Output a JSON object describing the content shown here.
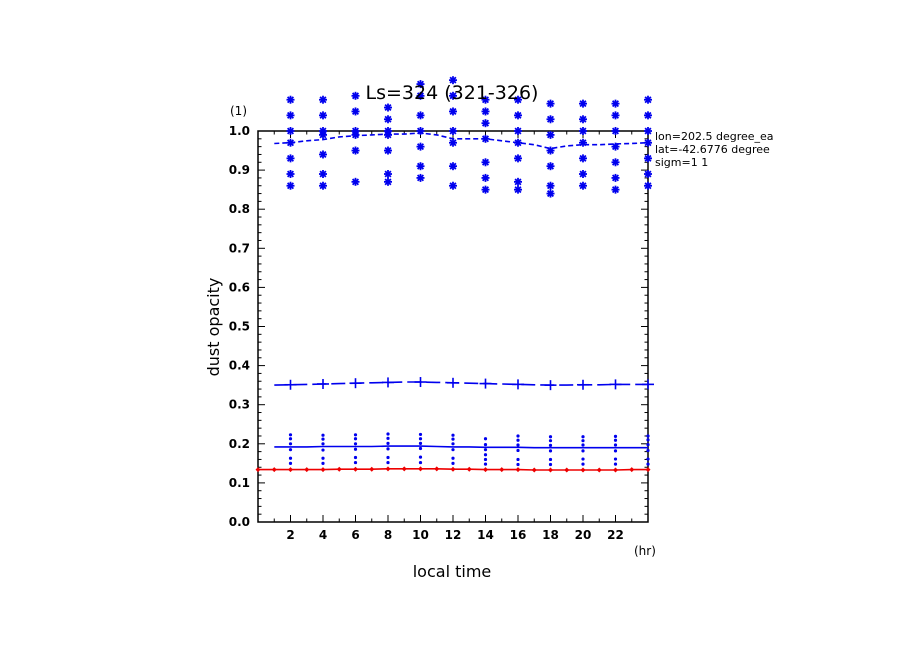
{
  "chart_data": {
    "type": "line",
    "title": "Ls=324 (321-326)",
    "xlabel": "local time",
    "ylabel": "dust opacity",
    "x_unit": "(hr)",
    "y_unit": "(1)",
    "xlim": [
      0,
      24
    ],
    "ylim": [
      0.0,
      1.0
    ],
    "xticks": [
      2,
      4,
      6,
      8,
      10,
      12,
      14,
      16,
      18,
      20,
      22
    ],
    "yticks": [
      0.0,
      0.1,
      0.2,
      0.3,
      0.4,
      0.5,
      0.6,
      0.7,
      0.8,
      0.9,
      1.0
    ],
    "annotations": [
      "lon=202.5 degree_ea",
      "lat=-42.6776 degree",
      "sigm=1 1"
    ],
    "colors": {
      "blue": "#0000ee",
      "red": "#ee0000",
      "axis": "#000000"
    },
    "series": [
      {
        "style": "dashed-line",
        "color": "#0000ee",
        "x": [
          1,
          2,
          3,
          4,
          5,
          6,
          7,
          8,
          9,
          10,
          11,
          12,
          13,
          14,
          15,
          16,
          17,
          18,
          19,
          20,
          21,
          22,
          23,
          24
        ],
        "values": [
          0.968,
          0.97,
          0.975,
          0.978,
          0.985,
          0.988,
          0.99,
          0.992,
          0.992,
          0.995,
          0.99,
          0.98,
          0.98,
          0.98,
          0.975,
          0.97,
          0.965,
          0.955,
          0.962,
          0.965,
          0.965,
          0.967,
          0.968,
          0.97
        ]
      },
      {
        "style": "star-markers",
        "color": "#0000ee",
        "x": [
          2,
          4,
          6,
          8,
          10,
          12,
          14,
          16,
          18,
          20,
          22,
          24
        ],
        "scatter": [
          [
            0.86,
            0.89,
            0.93,
            0.97,
            1.0,
            1.04,
            1.08
          ],
          [
            0.86,
            0.89,
            0.94,
            0.99,
            1.0,
            1.04,
            1.08
          ],
          [
            0.87,
            0.95,
            0.99,
            1.0,
            1.05,
            1.09
          ],
          [
            0.87,
            0.89,
            0.95,
            0.99,
            1.0,
            1.03,
            1.06
          ],
          [
            0.88,
            0.91,
            0.96,
            1.0,
            1.04,
            1.09,
            1.12
          ],
          [
            0.86,
            0.91,
            0.97,
            1.0,
            1.05,
            1.09,
            1.13
          ],
          [
            0.85,
            0.88,
            0.92,
            0.98,
            1.02,
            1.05,
            1.08
          ],
          [
            0.85,
            0.87,
            0.93,
            0.97,
            1.0,
            1.04,
            1.08
          ],
          [
            0.84,
            0.86,
            0.91,
            0.95,
            0.99,
            1.03,
            1.07
          ],
          [
            0.86,
            0.89,
            0.93,
            0.97,
            1.0,
            1.03,
            1.07
          ],
          [
            0.85,
            0.88,
            0.92,
            0.96,
            1.0,
            1.04,
            1.07
          ],
          [
            0.86,
            0.89,
            0.93,
            0.97,
            1.0,
            1.04,
            1.08
          ]
        ]
      },
      {
        "style": "long-dash-cross",
        "color": "#0000ee",
        "x": [
          1,
          2,
          3,
          4,
          5,
          6,
          7,
          8,
          9,
          10,
          11,
          12,
          13,
          14,
          15,
          16,
          17,
          18,
          19,
          20,
          21,
          22,
          23,
          24
        ],
        "values": [
          0.35,
          0.351,
          0.352,
          0.353,
          0.354,
          0.355,
          0.356,
          0.357,
          0.358,
          0.358,
          0.357,
          0.356,
          0.355,
          0.354,
          0.353,
          0.352,
          0.351,
          0.35,
          0.35,
          0.351,
          0.351,
          0.352,
          0.352,
          0.352
        ]
      },
      {
        "style": "solid-line",
        "color": "#0000ee",
        "x": [
          1,
          2,
          3,
          4,
          5,
          6,
          7,
          8,
          9,
          10,
          11,
          12,
          13,
          14,
          15,
          16,
          17,
          18,
          19,
          20,
          21,
          22,
          23,
          24
        ],
        "values": [
          0.192,
          0.192,
          0.192,
          0.193,
          0.193,
          0.193,
          0.193,
          0.194,
          0.194,
          0.194,
          0.193,
          0.192,
          0.192,
          0.191,
          0.191,
          0.191,
          0.19,
          0.19,
          0.19,
          0.19,
          0.19,
          0.19,
          0.19,
          0.19
        ]
      },
      {
        "style": "dot-markers",
        "color": "#0000ee",
        "x": [
          2,
          4,
          6,
          8,
          10,
          12,
          14,
          16,
          18,
          20,
          22,
          24
        ],
        "scatter": [
          [
            0.15,
            0.163,
            0.185,
            0.2,
            0.213,
            0.223
          ],
          [
            0.15,
            0.163,
            0.184,
            0.2,
            0.212,
            0.222
          ],
          [
            0.152,
            0.165,
            0.186,
            0.2,
            0.213,
            0.223
          ],
          [
            0.152,
            0.165,
            0.187,
            0.201,
            0.214,
            0.225
          ],
          [
            0.152,
            0.166,
            0.188,
            0.201,
            0.213,
            0.224
          ],
          [
            0.15,
            0.163,
            0.185,
            0.2,
            0.212,
            0.222
          ],
          [
            0.148,
            0.16,
            0.172,
            0.185,
            0.198,
            0.213
          ],
          [
            0.147,
            0.16,
            0.183,
            0.197,
            0.209,
            0.22
          ],
          [
            0.147,
            0.16,
            0.182,
            0.196,
            0.208,
            0.218
          ],
          [
            0.148,
            0.161,
            0.182,
            0.197,
            0.208,
            0.218
          ],
          [
            0.148,
            0.161,
            0.182,
            0.197,
            0.209,
            0.219
          ],
          [
            0.148,
            0.161,
            0.183,
            0.198,
            0.21,
            0.22
          ]
        ]
      },
      {
        "style": "solid-line-diamond",
        "color": "#ee0000",
        "x": [
          0,
          1,
          2,
          3,
          4,
          5,
          6,
          7,
          8,
          9,
          10,
          11,
          12,
          13,
          14,
          15,
          16,
          17,
          18,
          19,
          20,
          21,
          22,
          23,
          24
        ],
        "values": [
          0.134,
          0.134,
          0.134,
          0.134,
          0.134,
          0.135,
          0.135,
          0.135,
          0.136,
          0.136,
          0.136,
          0.136,
          0.135,
          0.135,
          0.134,
          0.134,
          0.134,
          0.133,
          0.133,
          0.133,
          0.133,
          0.133,
          0.133,
          0.134,
          0.134
        ]
      }
    ]
  }
}
